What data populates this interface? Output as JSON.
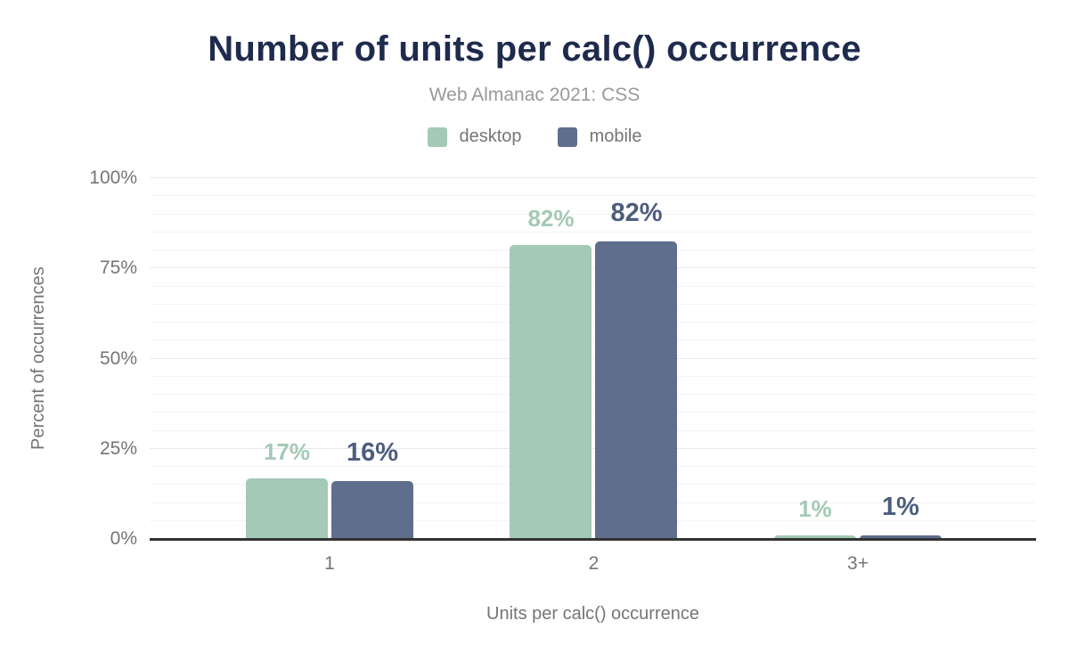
{
  "page": {
    "background": "#ffffff"
  },
  "chart_data": {
    "type": "bar",
    "title": "Number of units per calc() occurrence",
    "subtitle": "Web Almanac 2021: CSS",
    "xlabel": "Units per calc() occurrence",
    "ylabel": "Percent of occurrences",
    "categories": [
      "1",
      "2",
      "3+"
    ],
    "series": [
      {
        "name": "desktop",
        "color": "#a4c9b6",
        "label_color": "#a4c9b6",
        "values": [
          17,
          82,
          1
        ],
        "labels": [
          "17%",
          "82%",
          "1%"
        ],
        "precise_values": [
          16.8,
          81.6,
          0.9
        ]
      },
      {
        "name": "mobile",
        "color": "#5f6e8c",
        "label_color": "#4c5d7d",
        "values": [
          16,
          82,
          1
        ],
        "labels": [
          "16%",
          "82%",
          "1%"
        ],
        "precise_values": [
          16.1,
          82.4,
          1.1
        ]
      }
    ],
    "ylim": [
      0,
      100
    ],
    "yticks": [
      {
        "value": 0,
        "label": "0%"
      },
      {
        "value": 25,
        "label": "25%"
      },
      {
        "value": 50,
        "label": "50%"
      },
      {
        "value": 75,
        "label": "75%"
      },
      {
        "value": 100,
        "label": "100%"
      }
    ],
    "grid": {
      "minor_step": 5,
      "major_step": 25,
      "vertical": false
    },
    "legend_position": "top",
    "colors": {
      "title": "#1e2b4d",
      "subtitle": "#999999",
      "axis_text": "#757575",
      "axis_line": "#333333",
      "gridline_minor": "#f4f4f4",
      "gridline_major": "#e8e8e8",
      "background": "#ffffff"
    }
  }
}
